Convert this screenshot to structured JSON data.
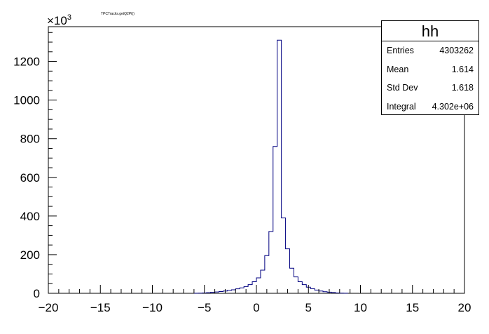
{
  "chart_data": {
    "type": "histogram",
    "title": "TPCTracks.getQ2Pt()",
    "xlim": [
      -20,
      20
    ],
    "ylim": [
      0,
      1380
    ],
    "y_multiplier_label": "×10",
    "y_multiplier_exponent": "3",
    "x_ticks": [
      -20,
      -15,
      -10,
      -5,
      0,
      5,
      10,
      15,
      20
    ],
    "x_tick_labels": [
      "−20",
      "−15",
      "−10",
      "−5",
      "0",
      "5",
      "10",
      "15",
      "20"
    ],
    "y_ticks": [
      0,
      200,
      400,
      600,
      800,
      1000,
      1200
    ],
    "y_tick_labels": [
      "0",
      "200",
      "400",
      "600",
      "800",
      "1000",
      "1200"
    ],
    "bin_width": 0.4,
    "bins": [
      {
        "x0": -6.0,
        "value": 0.5
      },
      {
        "x0": -5.6,
        "value": 1
      },
      {
        "x0": -5.2,
        "value": 2
      },
      {
        "x0": -4.8,
        "value": 3
      },
      {
        "x0": -4.4,
        "value": 5
      },
      {
        "x0": -4.0,
        "value": 7
      },
      {
        "x0": -3.6,
        "value": 9
      },
      {
        "x0": -3.2,
        "value": 12
      },
      {
        "x0": -2.8,
        "value": 15
      },
      {
        "x0": -2.4,
        "value": 18
      },
      {
        "x0": -2.0,
        "value": 23
      },
      {
        "x0": -1.6,
        "value": 28
      },
      {
        "x0": -1.2,
        "value": 35
      },
      {
        "x0": -0.8,
        "value": 45
      },
      {
        "x0": -0.4,
        "value": 60
      },
      {
        "x0": 0.0,
        "value": 80
      },
      {
        "x0": 0.4,
        "value": 120
      },
      {
        "x0": 0.8,
        "value": 195
      },
      {
        "x0": 1.2,
        "value": 320
      },
      {
        "x0": 1.6,
        "value": 760
      },
      {
        "x0": 2.0,
        "value": 1310
      },
      {
        "x0": 2.4,
        "value": 390
      },
      {
        "x0": 2.8,
        "value": 230
      },
      {
        "x0": 3.2,
        "value": 130
      },
      {
        "x0": 3.6,
        "value": 85
      },
      {
        "x0": 4.0,
        "value": 60
      },
      {
        "x0": 4.4,
        "value": 45
      },
      {
        "x0": 4.8,
        "value": 32
      },
      {
        "x0": 5.2,
        "value": 24
      },
      {
        "x0": 5.6,
        "value": 17
      },
      {
        "x0": 6.0,
        "value": 12
      },
      {
        "x0": 6.4,
        "value": 8
      },
      {
        "x0": 6.8,
        "value": 6
      },
      {
        "x0": 7.2,
        "value": 4
      },
      {
        "x0": 7.6,
        "value": 2
      },
      {
        "x0": 8.0,
        "value": 1
      },
      {
        "x0": 8.4,
        "value": 0.5
      }
    ],
    "line_color": "#000080"
  },
  "stats": {
    "title": "hh",
    "rows": [
      {
        "key": "Entries",
        "value": "4303262"
      },
      {
        "key": "Mean",
        "value": "1.614"
      },
      {
        "key": "Std Dev",
        "value": "1.618"
      },
      {
        "key": "Integral",
        "value": "4.302e+06"
      }
    ]
  }
}
